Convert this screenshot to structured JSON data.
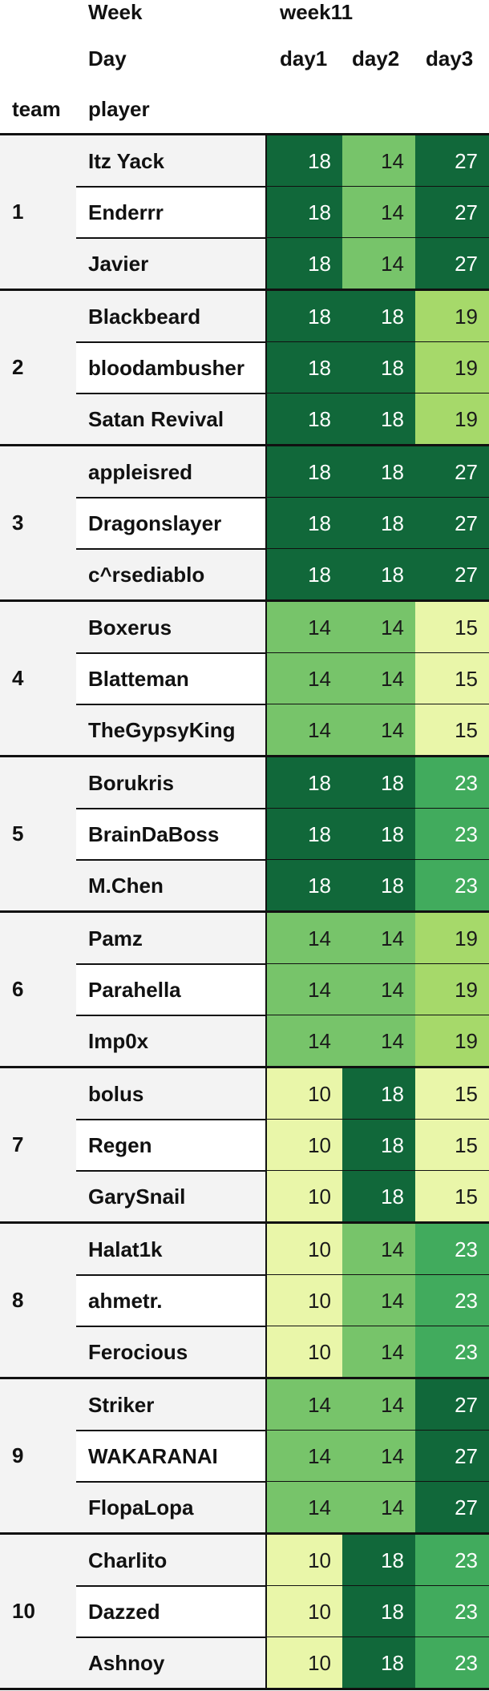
{
  "header": {
    "week_label": "Week",
    "week_value": "week11",
    "day_label": "Day",
    "days": [
      "day1",
      "day2",
      "day3"
    ],
    "team_label": "team",
    "player_label": "player"
  },
  "colors": {
    "scale": {
      "10": "#e9f6a9",
      "14": "#77c46a",
      "15": "#e9f6a9",
      "18": "#11683a",
      "19": "#a6d96a",
      "23": "#41ab5d",
      "27": "#11683a"
    },
    "header_text": "#111111",
    "stripe": "#f3f3f3",
    "light_text": "#1a1a1a",
    "dark_text": "#ffffff"
  },
  "chart_data": {
    "type": "heatmap",
    "title": "",
    "columns": [
      "day1",
      "day2",
      "day3"
    ],
    "teams": [
      {
        "team": "1",
        "players": [
          {
            "name": "Itz Yack",
            "values": [
              18,
              14,
              27
            ]
          },
          {
            "name": "Enderrr",
            "values": [
              18,
              14,
              27
            ]
          },
          {
            "name": "Javier",
            "values": [
              18,
              14,
              27
            ]
          }
        ]
      },
      {
        "team": "2",
        "players": [
          {
            "name": "Blackbeard",
            "values": [
              18,
              18,
              19
            ]
          },
          {
            "name": "bloodambusher",
            "values": [
              18,
              18,
              19
            ]
          },
          {
            "name": "Satan Revival",
            "values": [
              18,
              18,
              19
            ]
          }
        ]
      },
      {
        "team": "3",
        "players": [
          {
            "name": "appleisred",
            "values": [
              18,
              18,
              27
            ]
          },
          {
            "name": "Dragonslayer",
            "values": [
              18,
              18,
              27
            ]
          },
          {
            "name": "c^rsediablo",
            "values": [
              18,
              18,
              27
            ]
          }
        ]
      },
      {
        "team": "4",
        "players": [
          {
            "name": "Boxerus",
            "values": [
              14,
              14,
              15
            ]
          },
          {
            "name": "Blatteman",
            "values": [
              14,
              14,
              15
            ]
          },
          {
            "name": "TheGypsyKing",
            "values": [
              14,
              14,
              15
            ]
          }
        ]
      },
      {
        "team": "5",
        "players": [
          {
            "name": "Borukris",
            "values": [
              18,
              18,
              23
            ]
          },
          {
            "name": "BrainDaBoss",
            "values": [
              18,
              18,
              23
            ]
          },
          {
            "name": "M.Chen",
            "values": [
              18,
              18,
              23
            ]
          }
        ]
      },
      {
        "team": "6",
        "players": [
          {
            "name": "Pamz",
            "values": [
              14,
              14,
              19
            ]
          },
          {
            "name": "Parahella",
            "values": [
              14,
              14,
              19
            ]
          },
          {
            "name": "Imp0x",
            "values": [
              14,
              14,
              19
            ]
          }
        ]
      },
      {
        "team": "7",
        "players": [
          {
            "name": "bolus",
            "values": [
              10,
              18,
              15
            ]
          },
          {
            "name": "Regen",
            "values": [
              10,
              18,
              15
            ]
          },
          {
            "name": "GarySnail",
            "values": [
              10,
              18,
              15
            ]
          }
        ]
      },
      {
        "team": "8",
        "players": [
          {
            "name": "Halat1k",
            "values": [
              10,
              14,
              23
            ]
          },
          {
            "name": "ahmetr.",
            "values": [
              10,
              14,
              23
            ]
          },
          {
            "name": "Ferocious",
            "values": [
              10,
              14,
              23
            ]
          }
        ]
      },
      {
        "team": "9",
        "players": [
          {
            "name": "Striker",
            "values": [
              14,
              14,
              27
            ]
          },
          {
            "name": "WAKARANAI",
            "values": [
              14,
              14,
              27
            ]
          },
          {
            "name": "FlopaLopa",
            "values": [
              14,
              14,
              27
            ]
          }
        ]
      },
      {
        "team": "10",
        "players": [
          {
            "name": "Charlito",
            "values": [
              10,
              18,
              23
            ]
          },
          {
            "name": "Dazzed",
            "values": [
              10,
              18,
              23
            ]
          },
          {
            "name": "Ashnoy",
            "values": [
              10,
              18,
              23
            ]
          }
        ]
      }
    ]
  }
}
